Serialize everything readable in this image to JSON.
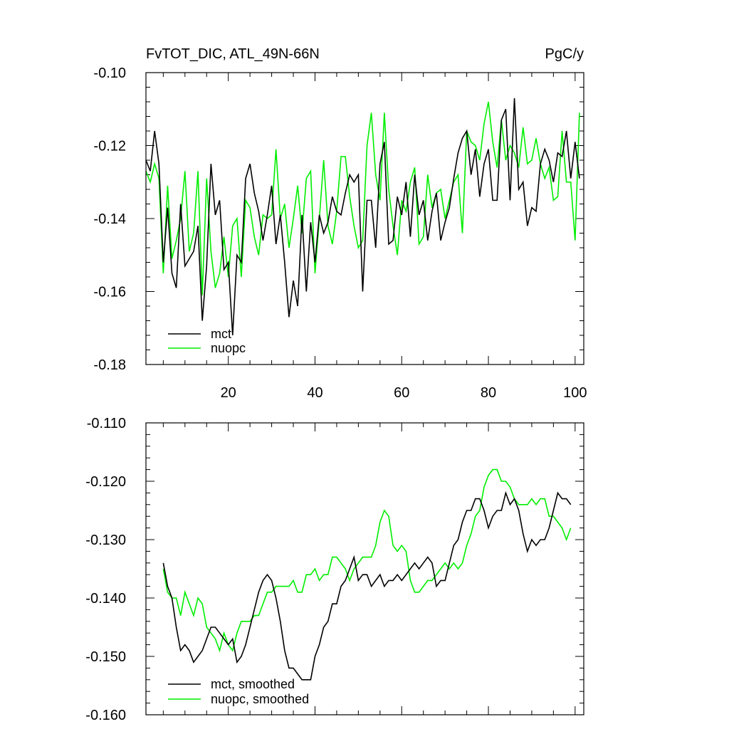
{
  "chart_data": [
    {
      "type": "line",
      "title": "FvTOT_DIC, ATL_49N-66N",
      "units": "PgC/y",
      "xlim": [
        1,
        102
      ],
      "ylim": [
        -0.18,
        -0.1
      ],
      "xticks": [
        20,
        40,
        60,
        80,
        100
      ],
      "xtick_labels": [
        "20",
        "40",
        "60",
        "80",
        "100"
      ],
      "yticks": [
        -0.18,
        -0.16,
        -0.14,
        -0.12,
        -0.1
      ],
      "ytick_labels": [
        "-0.18",
        "-0.16",
        "-0.14",
        "-0.12",
        "-0.10"
      ],
      "legend_position": "bottom-left",
      "series": [
        {
          "name": "mct",
          "color": "#000000",
          "x_start": 1,
          "values": [
            -0.124,
            -0.127,
            -0.116,
            -0.125,
            -0.152,
            -0.137,
            -0.155,
            -0.159,
            -0.136,
            -0.153,
            -0.151,
            -0.149,
            -0.142,
            -0.168,
            -0.153,
            -0.125,
            -0.139,
            -0.135,
            -0.154,
            -0.152,
            -0.172,
            -0.15,
            -0.152,
            -0.129,
            -0.125,
            -0.133,
            -0.138,
            -0.146,
            -0.139,
            -0.131,
            -0.147,
            -0.139,
            -0.152,
            -0.167,
            -0.157,
            -0.164,
            -0.139,
            -0.16,
            -0.141,
            -0.152,
            -0.139,
            -0.144,
            -0.141,
            -0.134,
            -0.138,
            -0.139,
            -0.133,
            -0.128,
            -0.13,
            -0.128,
            -0.16,
            -0.135,
            -0.135,
            -0.148,
            -0.125,
            -0.119,
            -0.147,
            -0.146,
            -0.134,
            -0.139,
            -0.13,
            -0.145,
            -0.128,
            -0.139,
            -0.135,
            -0.146,
            -0.138,
            -0.133,
            -0.146,
            -0.141,
            -0.137,
            -0.129,
            -0.122,
            -0.118,
            -0.116,
            -0.128,
            -0.121,
            -0.134,
            -0.125,
            -0.121,
            -0.135,
            -0.135,
            -0.113,
            -0.11,
            -0.135,
            -0.107,
            -0.132,
            -0.13,
            -0.142,
            -0.137,
            -0.138,
            -0.125,
            -0.121,
            -0.124,
            -0.13,
            -0.122,
            -0.123,
            -0.116,
            -0.129,
            -0.119,
            -0.129
          ]
        },
        {
          "name": "nuopc",
          "color": "#00ee00",
          "x_start": 1,
          "values": [
            -0.127,
            -0.13,
            -0.125,
            -0.129,
            -0.155,
            -0.131,
            -0.151,
            -0.146,
            -0.14,
            -0.127,
            -0.149,
            -0.144,
            -0.127,
            -0.161,
            -0.129,
            -0.149,
            -0.159,
            -0.155,
            -0.145,
            -0.156,
            -0.142,
            -0.14,
            -0.156,
            -0.135,
            -0.137,
            -0.145,
            -0.15,
            -0.139,
            -0.14,
            -0.139,
            -0.121,
            -0.14,
            -0.136,
            -0.148,
            -0.14,
            -0.131,
            -0.144,
            -0.129,
            -0.127,
            -0.155,
            -0.14,
            -0.124,
            -0.142,
            -0.147,
            -0.138,
            -0.123,
            -0.123,
            -0.134,
            -0.142,
            -0.148,
            -0.146,
            -0.12,
            -0.111,
            -0.128,
            -0.135,
            -0.111,
            -0.132,
            -0.142,
            -0.15,
            -0.135,
            -0.138,
            -0.13,
            -0.126,
            -0.147,
            -0.145,
            -0.128,
            -0.137,
            -0.133,
            -0.132,
            -0.14,
            -0.135,
            -0.13,
            -0.128,
            -0.144,
            -0.116,
            -0.119,
            -0.12,
            -0.124,
            -0.114,
            -0.108,
            -0.119,
            -0.126,
            -0.113,
            -0.124,
            -0.12,
            -0.122,
            -0.126,
            -0.115,
            -0.125,
            -0.124,
            -0.118,
            -0.125,
            -0.129,
            -0.126,
            -0.135,
            -0.134,
            -0.116,
            -0.13,
            -0.13,
            -0.146,
            -0.111
          ]
        }
      ]
    },
    {
      "type": "line",
      "title": "",
      "xlim": [
        1,
        102
      ],
      "ylim": [
        -0.16,
        -0.11
      ],
      "xticks": [
        20,
        40,
        60,
        80,
        100
      ],
      "xtick_labels": [],
      "yticks": [
        -0.16,
        -0.15,
        -0.14,
        -0.13,
        -0.12,
        -0.11
      ],
      "ytick_labels": [
        "-0.160",
        "-0.150",
        "-0.140",
        "-0.130",
        "-0.120",
        "-0.110"
      ],
      "legend_position": "bottom-left",
      "series": [
        {
          "name": "mct, smoothed",
          "color": "#000000",
          "x_start": 5,
          "values": [
            -0.134,
            -0.138,
            -0.14,
            -0.145,
            -0.149,
            -0.148,
            -0.149,
            -0.151,
            -0.15,
            -0.149,
            -0.147,
            -0.145,
            -0.145,
            -0.146,
            -0.147,
            -0.148,
            -0.147,
            -0.151,
            -0.15,
            -0.148,
            -0.145,
            -0.142,
            -0.139,
            -0.137,
            -0.136,
            -0.137,
            -0.14,
            -0.144,
            -0.149,
            -0.152,
            -0.152,
            -0.153,
            -0.154,
            -0.154,
            -0.154,
            -0.15,
            -0.148,
            -0.145,
            -0.144,
            -0.141,
            -0.141,
            -0.138,
            -0.137,
            -0.135,
            -0.133,
            -0.137,
            -0.136,
            -0.136,
            -0.138,
            -0.137,
            -0.136,
            -0.138,
            -0.137,
            -0.137,
            -0.136,
            -0.137,
            -0.136,
            -0.135,
            -0.134,
            -0.135,
            -0.134,
            -0.133,
            -0.134,
            -0.138,
            -0.137,
            -0.137,
            -0.134,
            -0.131,
            -0.13,
            -0.127,
            -0.125,
            -0.125,
            -0.123,
            -0.123,
            -0.125,
            -0.128,
            -0.126,
            -0.125,
            -0.125,
            -0.122,
            -0.124,
            -0.123,
            -0.125,
            -0.129,
            -0.132,
            -0.13,
            -0.131,
            -0.13,
            -0.13,
            -0.128,
            -0.125,
            -0.122,
            -0.123,
            -0.123,
            -0.124
          ]
        },
        {
          "name": "nuopc, smoothed",
          "color": "#00ee00",
          "x_start": 5,
          "values": [
            -0.135,
            -0.139,
            -0.14,
            -0.14,
            -0.143,
            -0.139,
            -0.141,
            -0.143,
            -0.14,
            -0.141,
            -0.145,
            -0.146,
            -0.147,
            -0.149,
            -0.146,
            -0.148,
            -0.149,
            -0.146,
            -0.144,
            -0.144,
            -0.144,
            -0.143,
            -0.143,
            -0.141,
            -0.139,
            -0.139,
            -0.138,
            -0.138,
            -0.138,
            -0.138,
            -0.137,
            -0.139,
            -0.139,
            -0.136,
            -0.136,
            -0.135,
            -0.137,
            -0.136,
            -0.136,
            -0.133,
            -0.133,
            -0.134,
            -0.135,
            -0.137,
            -0.135,
            -0.134,
            -0.133,
            -0.133,
            -0.133,
            -0.131,
            -0.127,
            -0.125,
            -0.126,
            -0.131,
            -0.132,
            -0.131,
            -0.132,
            -0.137,
            -0.139,
            -0.139,
            -0.138,
            -0.137,
            -0.137,
            -0.136,
            -0.135,
            -0.134,
            -0.135,
            -0.134,
            -0.135,
            -0.134,
            -0.131,
            -0.129,
            -0.126,
            -0.125,
            -0.121,
            -0.119,
            -0.118,
            -0.118,
            -0.12,
            -0.12,
            -0.121,
            -0.123,
            -0.124,
            -0.124,
            -0.124,
            -0.123,
            -0.124,
            -0.123,
            -0.123,
            -0.126,
            -0.126,
            -0.127,
            -0.128,
            -0.13,
            -0.128
          ]
        }
      ]
    }
  ]
}
